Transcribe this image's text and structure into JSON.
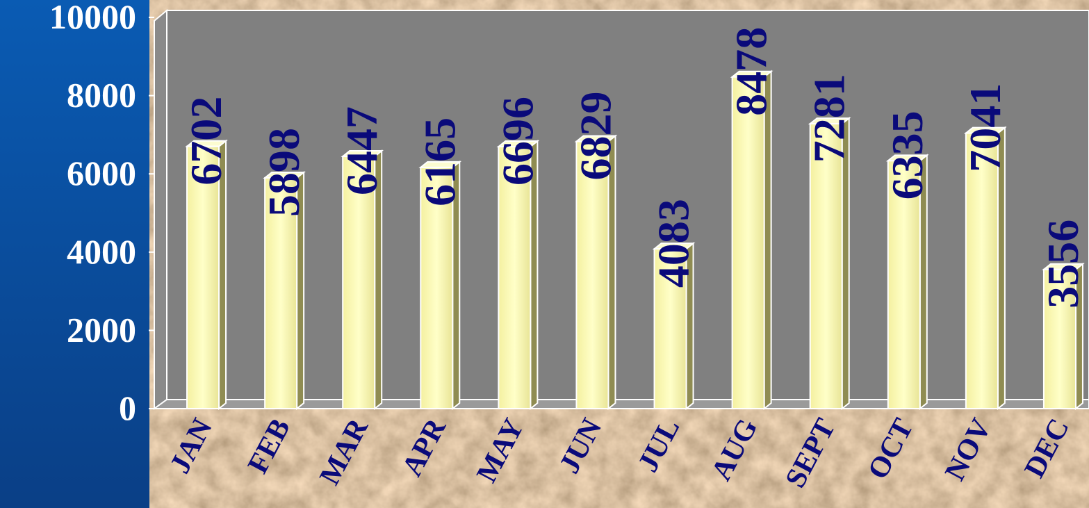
{
  "chart_data": {
    "type": "bar",
    "categories": [
      "JAN",
      "FEB",
      "MAR",
      "APR",
      "MAY",
      "JUN",
      "JUL",
      "AUG",
      "SEPT",
      "OCT",
      "NOV",
      "DEC"
    ],
    "values": [
      6702,
      5898,
      6447,
      6165,
      6696,
      6829,
      4083,
      8478,
      7281,
      6335,
      7041,
      3556
    ],
    "color": "#ffffa8",
    "ylim": [
      0,
      10000
    ],
    "yticks": [
      0,
      2000,
      4000,
      6000,
      8000,
      10000
    ]
  }
}
